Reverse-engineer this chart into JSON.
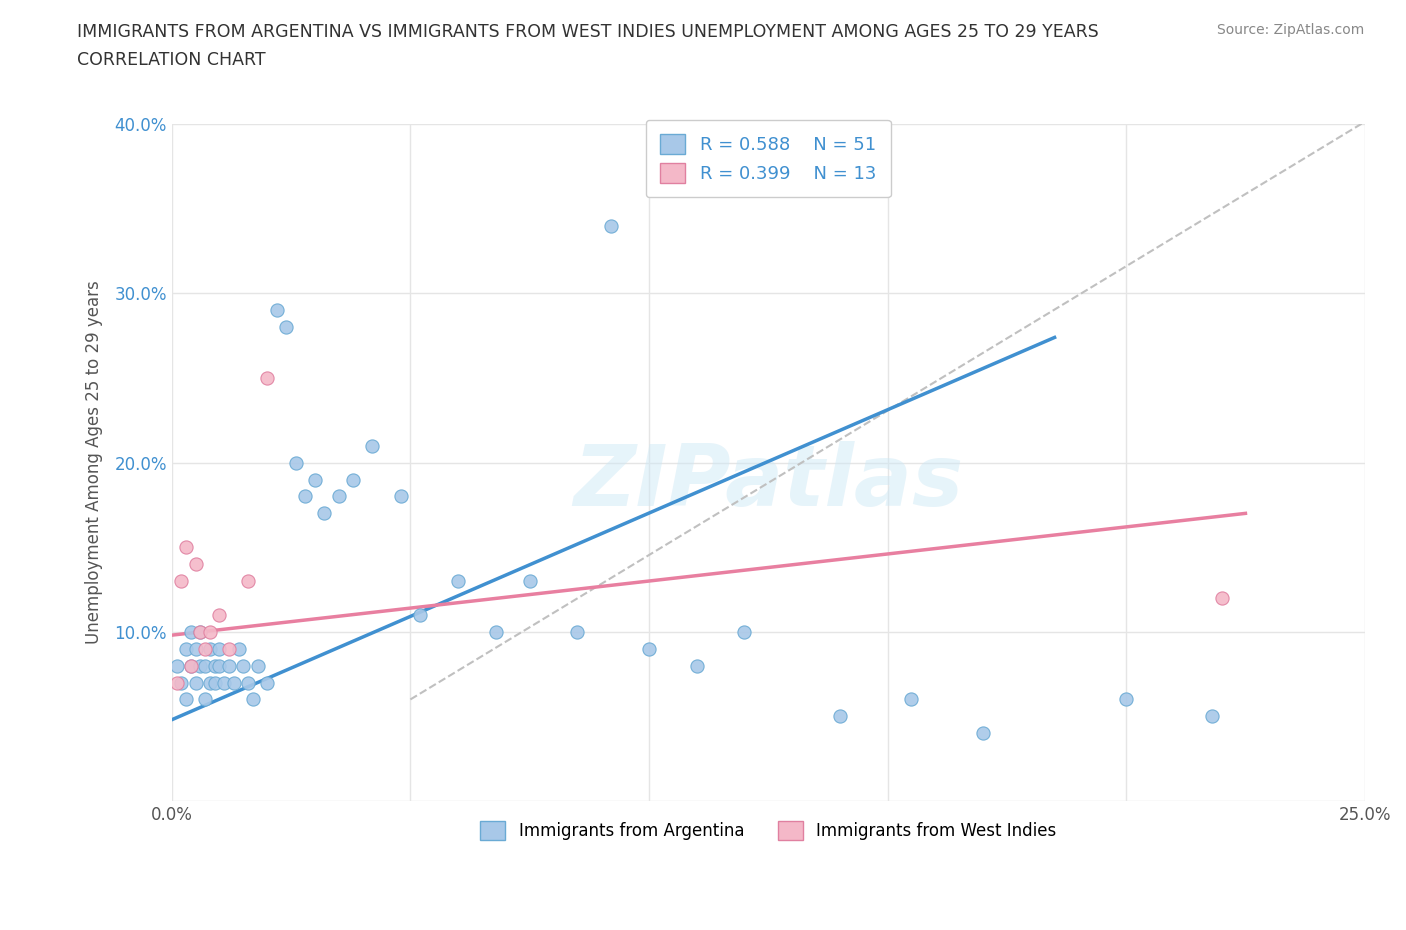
{
  "title_line1": "IMMIGRANTS FROM ARGENTINA VS IMMIGRANTS FROM WEST INDIES UNEMPLOYMENT AMONG AGES 25 TO 29 YEARS",
  "title_line2": "CORRELATION CHART",
  "source_text": "Source: ZipAtlas.com",
  "ylabel": "Unemployment Among Ages 25 to 29 years",
  "xlim": [
    0.0,
    0.25
  ],
  "ylim": [
    0.0,
    0.4
  ],
  "xtick_pos": [
    0.0,
    0.05,
    0.1,
    0.15,
    0.2,
    0.25
  ],
  "xtick_labels": [
    "0.0%",
    "",
    "",
    "",
    "",
    "25.0%"
  ],
  "ytick_pos": [
    0.0,
    0.1,
    0.2,
    0.3,
    0.4
  ],
  "ytick_labels": [
    "",
    "10.0%",
    "20.0%",
    "30.0%",
    "40.0%"
  ],
  "watermark": "ZIPatlas",
  "argentina_face": "#a8c8e8",
  "argentina_edge": "#6aaad4",
  "westindies_face": "#f4b8c8",
  "westindies_edge": "#e080a0",
  "argentina_line_color": "#4090d0",
  "westindies_line_color": "#e87fa0",
  "ref_line_color": "#c0c0c0",
  "R_argentina": 0.588,
  "N_argentina": 51,
  "R_westindies": 0.399,
  "N_westindies": 13,
  "arg_line_x": [
    0.0,
    0.185
  ],
  "arg_line_y": [
    0.048,
    0.274
  ],
  "wi_line_x": [
    0.0,
    0.225
  ],
  "wi_line_y": [
    0.098,
    0.17
  ],
  "ref_line_x": [
    0.05,
    0.255
  ],
  "ref_line_y": [
    0.06,
    0.41
  ],
  "argentina_x": [
    0.001,
    0.002,
    0.003,
    0.003,
    0.004,
    0.004,
    0.005,
    0.005,
    0.006,
    0.006,
    0.007,
    0.007,
    0.008,
    0.008,
    0.009,
    0.009,
    0.01,
    0.01,
    0.011,
    0.012,
    0.013,
    0.014,
    0.015,
    0.016,
    0.017,
    0.018,
    0.02,
    0.022,
    0.024,
    0.026,
    0.028,
    0.03,
    0.032,
    0.035,
    0.038,
    0.042,
    0.048,
    0.052,
    0.06,
    0.068,
    0.075,
    0.085,
    0.092,
    0.1,
    0.11,
    0.12,
    0.14,
    0.155,
    0.17,
    0.2,
    0.218
  ],
  "argentina_y": [
    0.08,
    0.07,
    0.06,
    0.09,
    0.08,
    0.1,
    0.07,
    0.09,
    0.08,
    0.1,
    0.06,
    0.08,
    0.07,
    0.09,
    0.08,
    0.07,
    0.09,
    0.08,
    0.07,
    0.08,
    0.07,
    0.09,
    0.08,
    0.07,
    0.06,
    0.08,
    0.07,
    0.29,
    0.28,
    0.2,
    0.18,
    0.19,
    0.17,
    0.18,
    0.19,
    0.21,
    0.18,
    0.11,
    0.13,
    0.1,
    0.13,
    0.1,
    0.34,
    0.09,
    0.08,
    0.1,
    0.05,
    0.06,
    0.04,
    0.06,
    0.05
  ],
  "westindies_x": [
    0.001,
    0.002,
    0.003,
    0.004,
    0.005,
    0.006,
    0.007,
    0.008,
    0.01,
    0.012,
    0.016,
    0.02,
    0.22
  ],
  "westindies_y": [
    0.07,
    0.13,
    0.15,
    0.08,
    0.14,
    0.1,
    0.09,
    0.1,
    0.11,
    0.09,
    0.13,
    0.25,
    0.12
  ],
  "marker_size": 90,
  "background_color": "#ffffff",
  "grid_color": "#e5e5e5",
  "title_color": "#333333",
  "axis_label_color": "#555555",
  "ytick_color": "#4090d0",
  "xtick_color": "#555555",
  "source_color": "#888888",
  "legend_text_color": "#4090d0"
}
